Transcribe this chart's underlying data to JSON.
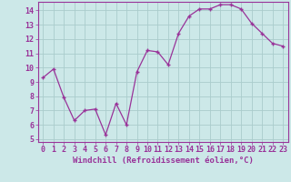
{
  "x": [
    0,
    1,
    2,
    3,
    4,
    5,
    6,
    7,
    8,
    9,
    10,
    11,
    12,
    13,
    14,
    15,
    16,
    17,
    18,
    19,
    20,
    21,
    22,
    23
  ],
  "y": [
    9.3,
    9.9,
    7.9,
    6.3,
    7.0,
    7.1,
    5.3,
    7.5,
    6.0,
    9.7,
    11.2,
    11.1,
    10.2,
    12.4,
    13.6,
    14.1,
    14.1,
    14.4,
    14.4,
    14.1,
    13.1,
    12.4,
    11.7,
    11.5
  ],
  "line_color": "#993399",
  "marker": "+",
  "bg_color": "#cce8e8",
  "grid_color": "#aacccc",
  "xlabel": "Windchill (Refroidissement éolien,°C)",
  "ylabel_ticks": [
    5,
    6,
    7,
    8,
    9,
    10,
    11,
    12,
    13,
    14
  ],
  "xlim": [
    -0.5,
    23.5
  ],
  "ylim": [
    4.8,
    14.6
  ],
  "tick_color": "#993399",
  "label_color": "#993399",
  "tick_fontsize": 6,
  "xlabel_fontsize": 6.5
}
